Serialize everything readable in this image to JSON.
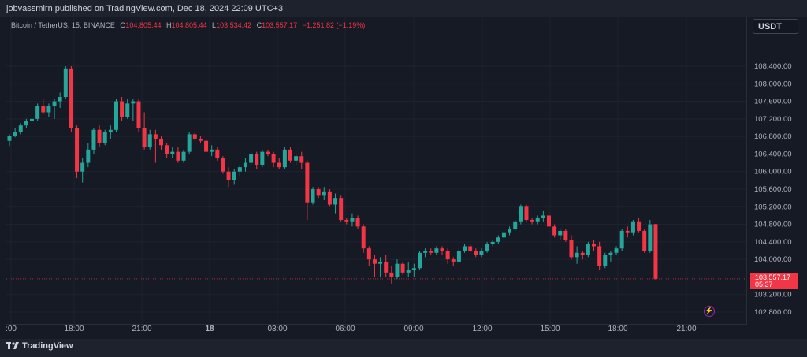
{
  "header": {
    "publish_line": "jobvassmirn published on TradingView.com, Dec 18, 2024 22:09 UTC+3"
  },
  "legend": {
    "symbol": "Bitcoin / TetherUS, 15, BINANCE",
    "open_label": "O",
    "open": "104,805.44",
    "high_label": "H",
    "high": "104,805.44",
    "low_label": "L",
    "low": "103,534.42",
    "close_label": "C",
    "close": "103,557.17",
    "change": "−1,251.82 (−1.19%)"
  },
  "currency_button": "USDT",
  "price_tag": {
    "price": "103,557.17",
    "countdown": "05:37"
  },
  "footer": {
    "brand": "TradingView"
  },
  "icons": {
    "alert": "bolt-icon",
    "logo": "tradingview-logo-icon"
  },
  "colors": {
    "up": "#26a69a",
    "down": "#f23645",
    "background": "#161a25",
    "grid": "#1f2330"
  },
  "chart_data": {
    "type": "candlestick",
    "interval": "15",
    "y_ticks": [
      102800,
      103200,
      103600,
      104000,
      104400,
      104800,
      105200,
      105600,
      106000,
      106400,
      106800,
      107200,
      107600,
      108000,
      108400
    ],
    "y_tick_labels": [
      "102,800.00",
      "103,200.00",
      "103,600.00",
      "104,000.00",
      "104,400.00",
      "104,800.00",
      "105,200.00",
      "105,600.00",
      "106,000.00",
      "106,400.00",
      "106,800.00",
      "107,200.00",
      "107,600.00",
      "108,000.00",
      "108,400.00"
    ],
    "x_tick_labels": [
      ":00",
      "18:00",
      "21:00",
      "18",
      "03:00",
      "06:00",
      "09:00",
      "12:00",
      "15:00",
      "18:00",
      "21:00"
    ],
    "ylim": [
      102600,
      108700
    ],
    "last_price": 103557.17,
    "candles": [
      [
        106700,
        106850,
        106580,
        106820
      ],
      [
        106820,
        107000,
        106780,
        106900
      ],
      [
        106900,
        107100,
        106850,
        107050
      ],
      [
        107050,
        107200,
        106980,
        107150
      ],
      [
        107150,
        107250,
        107050,
        107200
      ],
      [
        107200,
        107550,
        107150,
        107500
      ],
      [
        107500,
        107650,
        107300,
        107350
      ],
      [
        107350,
        107550,
        107250,
        107500
      ],
      [
        107500,
        107650,
        107200,
        107600
      ],
      [
        107600,
        107800,
        107450,
        107700
      ],
      [
        107700,
        108400,
        107650,
        108350
      ],
      [
        108350,
        108400,
        106900,
        107000
      ],
      [
        107000,
        107050,
        105850,
        106000
      ],
      [
        106000,
        106300,
        105750,
        106200
      ],
      [
        106200,
        106650,
        106100,
        106500
      ],
      [
        106500,
        107000,
        106400,
        106950
      ],
      [
        106950,
        107050,
        106550,
        106650
      ],
      [
        106650,
        106950,
        106600,
        106900
      ],
      [
        106900,
        107050,
        106750,
        106950
      ],
      [
        106950,
        107650,
        106900,
        107600
      ],
      [
        107600,
        107700,
        107150,
        107250
      ],
      [
        107250,
        107650,
        107200,
        107550
      ],
      [
        107550,
        107650,
        107150,
        107600
      ],
      [
        107600,
        107650,
        106900,
        107000
      ],
      [
        107000,
        107350,
        106500,
        106550
      ],
      [
        106550,
        106950,
        106500,
        106850
      ],
      [
        106850,
        106950,
        106200,
        106750
      ],
      [
        106750,
        106800,
        106500,
        106600
      ],
      [
        106600,
        106650,
        106300,
        106400
      ],
      [
        106400,
        106550,
        106300,
        106450
      ],
      [
        106450,
        106550,
        106200,
        106250
      ],
      [
        106250,
        106500,
        106200,
        106450
      ],
      [
        106450,
        106900,
        106400,
        106850
      ],
      [
        106850,
        106900,
        106700,
        106750
      ],
      [
        106750,
        106800,
        106650,
        106700
      ],
      [
        106700,
        106750,
        106400,
        106450
      ],
      [
        106450,
        106600,
        106350,
        106500
      ],
      [
        106500,
        106550,
        106250,
        106300
      ],
      [
        106300,
        106350,
        105950,
        106000
      ],
      [
        106000,
        106100,
        105650,
        105800
      ],
      [
        105800,
        106050,
        105700,
        106000
      ],
      [
        106000,
        106150,
        105900,
        106100
      ],
      [
        106100,
        106300,
        106000,
        106200
      ],
      [
        106200,
        106450,
        106150,
        106400
      ],
      [
        106400,
        106450,
        106050,
        106150
      ],
      [
        106150,
        106500,
        106100,
        106450
      ],
      [
        106450,
        106500,
        106350,
        106400
      ],
      [
        106400,
        106450,
        106100,
        106200
      ],
      [
        106200,
        106300,
        106050,
        106100
      ],
      [
        106100,
        106550,
        106050,
        106500
      ],
      [
        106500,
        106550,
        106200,
        106250
      ],
      [
        106250,
        106400,
        106150,
        106350
      ],
      [
        106350,
        106450,
        106050,
        106200
      ],
      [
        106200,
        106250,
        104900,
        105300
      ],
      [
        105300,
        105650,
        105250,
        105600
      ],
      [
        105600,
        105650,
        105400,
        105450
      ],
      [
        105450,
        105650,
        105350,
        105550
      ],
      [
        105550,
        105600,
        105200,
        105250
      ],
      [
        105250,
        105500,
        105050,
        105400
      ],
      [
        105400,
        105450,
        104850,
        104900
      ],
      [
        104900,
        104950,
        104800,
        104850
      ],
      [
        104850,
        105050,
        104750,
        104950
      ],
      [
        104950,
        105000,
        104700,
        104750
      ],
      [
        104750,
        104800,
        104150,
        104250
      ],
      [
        104250,
        104300,
        103850,
        104000
      ],
      [
        104000,
        104100,
        103600,
        103900
      ],
      [
        103900,
        104050,
        103600,
        103950
      ],
      [
        103950,
        104100,
        103600,
        103700
      ],
      [
        103700,
        103850,
        103450,
        103600
      ],
      [
        103600,
        104000,
        103550,
        103900
      ],
      [
        103900,
        103950,
        103650,
        103700
      ],
      [
        103700,
        103950,
        103600,
        103750
      ],
      [
        103750,
        103900,
        103600,
        103800
      ],
      [
        103800,
        104200,
        103750,
        104150
      ],
      [
        104150,
        104250,
        104050,
        104200
      ],
      [
        104200,
        104250,
        104100,
        104150
      ],
      [
        104150,
        104300,
        104100,
        104250
      ],
      [
        104250,
        104300,
        104100,
        104200
      ],
      [
        104200,
        104250,
        103900,
        104000
      ],
      [
        104000,
        104050,
        103850,
        103950
      ],
      [
        103950,
        104250,
        103900,
        104200
      ],
      [
        104200,
        104350,
        104150,
        104300
      ],
      [
        104300,
        104350,
        104150,
        104200
      ],
      [
        104200,
        104250,
        104050,
        104100
      ],
      [
        104100,
        104250,
        104050,
        104200
      ],
      [
        104200,
        104400,
        104150,
        104350
      ],
      [
        104350,
        104450,
        104300,
        104400
      ],
      [
        104400,
        104550,
        104350,
        104500
      ],
      [
        104500,
        104650,
        104450,
        104600
      ],
      [
        104600,
        104750,
        104550,
        104700
      ],
      [
        104700,
        104900,
        104650,
        104850
      ],
      [
        104850,
        105250,
        104800,
        105200
      ],
      [
        105200,
        105250,
        104850,
        104900
      ],
      [
        104900,
        104950,
        104800,
        104850
      ],
      [
        104850,
        105000,
        104800,
        104950
      ],
      [
        104950,
        105100,
        104850,
        105000
      ],
      [
        105000,
        105150,
        104700,
        104750
      ],
      [
        104750,
        104800,
        104500,
        104550
      ],
      [
        104550,
        104700,
        104450,
        104650
      ],
      [
        104650,
        104700,
        104400,
        104450
      ],
      [
        104450,
        104550,
        104000,
        104050
      ],
      [
        104050,
        104300,
        103900,
        104150
      ],
      [
        104150,
        104200,
        104000,
        104100
      ],
      [
        104100,
        104400,
        104050,
        104350
      ],
      [
        104350,
        104450,
        104200,
        104300
      ],
      [
        104300,
        104400,
        103750,
        103850
      ],
      [
        103850,
        104150,
        103800,
        104100
      ],
      [
        104100,
        104200,
        103950,
        104150
      ],
      [
        104150,
        104300,
        104100,
        104250
      ],
      [
        104250,
        104700,
        104200,
        104650
      ],
      [
        104650,
        104750,
        104500,
        104600
      ],
      [
        104600,
        104900,
        104550,
        104850
      ],
      [
        104850,
        104950,
        104600,
        104650
      ],
      [
        104650,
        104700,
        104150,
        104200
      ],
      [
        104200,
        104900,
        104150,
        104800
      ],
      [
        104805.44,
        104805.44,
        103534.42,
        103557.17
      ]
    ]
  }
}
